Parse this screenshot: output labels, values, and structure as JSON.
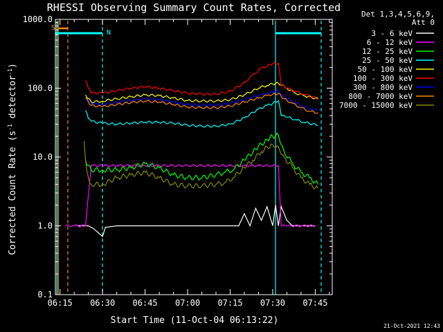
{
  "chart_data": {
    "type": "line",
    "title": "RHESSI Observing Summary Count Rates, Corrected",
    "xlabel": "Start Time (11-Oct-04 06:13:22)",
    "ylabel": "Corrected Count Rate (s",
    "ylabel_sup": "-1",
    "ylabel_mid": " detector",
    "ylabel_end": ")",
    "y_scale": "log",
    "ylim": [
      0.1,
      1000
    ],
    "xlim": [
      "06:13:22",
      "07:51:00"
    ],
    "x_tick_labels": [
      "06:15",
      "06:30",
      "06:45",
      "07:00",
      "07:15",
      "07:30",
      "07:45"
    ],
    "x_tick_minutes": [
      375,
      390,
      405,
      420,
      435,
      450,
      465
    ],
    "y_tick_labels": [
      "0.1",
      "1.0",
      "10.0",
      "100.0",
      "1000.0"
    ],
    "y_tick_values": [
      0.1,
      1,
      10,
      100,
      1000
    ],
    "legend_header_1": "Det 1,3,4,5,6,9,",
    "legend_header_2": "Att 0",
    "legend_position": "top-right",
    "timestamp": "21-Oct-2021 12:43",
    "markers": {
      "saa_label": "S",
      "night_label": "N"
    },
    "series": [
      {
        "name": "3 - 6 keV",
        "color": "#ffffff",
        "points": [
          [
            381,
            1.0
          ],
          [
            383,
            1.0
          ],
          [
            385,
            1.0
          ],
          [
            387,
            0.9
          ],
          [
            390,
            0.7
          ],
          [
            391,
            0.95
          ],
          [
            395,
            1.0
          ],
          [
            400,
            1.0
          ],
          [
            405,
            1.0
          ],
          [
            410,
            1.0
          ],
          [
            415,
            1.0
          ],
          [
            420,
            1.0
          ],
          [
            423,
            1.0
          ],
          [
            425,
            1.0
          ],
          [
            430,
            1.0
          ],
          [
            435,
            1.0
          ],
          [
            438,
            1.0
          ],
          [
            440,
            1.5
          ],
          [
            442,
            1.0
          ],
          [
            444,
            1.8
          ],
          [
            446,
            1.2
          ],
          [
            448,
            1.9
          ],
          [
            450,
            1.0
          ],
          [
            451,
            2.0
          ],
          [
            452,
            1.0
          ],
          [
            453,
            1.9
          ],
          [
            455,
            1.2
          ],
          [
            457,
            1.0
          ],
          [
            460,
            1.0
          ],
          [
            465,
            1.0
          ]
        ]
      },
      {
        "name": "6 - 12 keV",
        "color": "#ff00ff",
        "points": [
          [
            377,
            1.0
          ],
          [
            380,
            1.0
          ],
          [
            384,
            1.0
          ],
          [
            386,
            7.5
          ],
          [
            390,
            7.5
          ],
          [
            395,
            7.5
          ],
          [
            400,
            7.5
          ],
          [
            405,
            7.5
          ],
          [
            410,
            7.5
          ],
          [
            415,
            7.5
          ],
          [
            420,
            7.5
          ],
          [
            425,
            7.5
          ],
          [
            430,
            7.5
          ],
          [
            435,
            7.5
          ],
          [
            440,
            7.5
          ],
          [
            445,
            7.5
          ],
          [
            450,
            7.5
          ],
          [
            452,
            7.5
          ],
          [
            453,
            1.0
          ],
          [
            455,
            1.0
          ],
          [
            460,
            1.0
          ],
          [
            465,
            1.0
          ]
        ]
      },
      {
        "name": "12 - 25 keV",
        "color": "#00ff00",
        "points": [
          [
            384,
            9
          ],
          [
            386,
            6.5
          ],
          [
            390,
            6.5
          ],
          [
            395,
            6.5
          ],
          [
            400,
            7
          ],
          [
            405,
            8
          ],
          [
            410,
            7
          ],
          [
            415,
            5.5
          ],
          [
            420,
            5
          ],
          [
            425,
            5
          ],
          [
            430,
            5.5
          ],
          [
            433,
            6
          ],
          [
            436,
            6.5
          ],
          [
            440,
            9
          ],
          [
            444,
            13
          ],
          [
            448,
            18
          ],
          [
            450,
            20
          ],
          [
            452,
            21
          ],
          [
            454,
            12
          ],
          [
            457,
            8
          ],
          [
            460,
            6
          ],
          [
            463,
            5
          ],
          [
            466,
            4
          ]
        ]
      },
      {
        "name": "25 - 50 keV",
        "color": "#00ffff",
        "points": [
          [
            384,
            48
          ],
          [
            385,
            36
          ],
          [
            386,
            33
          ],
          [
            390,
            31
          ],
          [
            395,
            30
          ],
          [
            400,
            31
          ],
          [
            405,
            32
          ],
          [
            410,
            32
          ],
          [
            415,
            31
          ],
          [
            420,
            29
          ],
          [
            425,
            28
          ],
          [
            430,
            28
          ],
          [
            435,
            30
          ],
          [
            440,
            37
          ],
          [
            445,
            50
          ],
          [
            448,
            56
          ],
          [
            450,
            60
          ],
          [
            452,
            66
          ],
          [
            453,
            40
          ],
          [
            455,
            38
          ],
          [
            458,
            35
          ],
          [
            461,
            32
          ],
          [
            466,
            29
          ]
        ]
      },
      {
        "name": "50 - 100 keV",
        "color": "#ffff00",
        "points": [
          [
            384,
            80
          ],
          [
            386,
            63
          ],
          [
            390,
            65
          ],
          [
            395,
            70
          ],
          [
            400,
            75
          ],
          [
            405,
            80
          ],
          [
            410,
            78
          ],
          [
            415,
            72
          ],
          [
            420,
            66
          ],
          [
            425,
            65
          ],
          [
            430,
            65
          ],
          [
            435,
            68
          ],
          [
            440,
            80
          ],
          [
            445,
            100
          ],
          [
            448,
            110
          ],
          [
            450,
            115
          ],
          [
            452,
            118
          ],
          [
            455,
            100
          ],
          [
            458,
            85
          ],
          [
            461,
            78
          ],
          [
            466,
            70
          ]
        ]
      },
      {
        "name": "100 - 300 keV",
        "color": "#ff0000",
        "points": [
          [
            384,
            130
          ],
          [
            385,
            100
          ],
          [
            386,
            85
          ],
          [
            390,
            85
          ],
          [
            395,
            92
          ],
          [
            400,
            100
          ],
          [
            405,
            105
          ],
          [
            410,
            100
          ],
          [
            415,
            92
          ],
          [
            420,
            85
          ],
          [
            425,
            82
          ],
          [
            430,
            82
          ],
          [
            435,
            90
          ],
          [
            440,
            120
          ],
          [
            443,
            155
          ],
          [
            446,
            195
          ],
          [
            450,
            225
          ],
          [
            452,
            230
          ],
          [
            453,
            110
          ],
          [
            455,
            100
          ],
          [
            458,
            90
          ],
          [
            461,
            82
          ],
          [
            466,
            70
          ]
        ]
      },
      {
        "name": "300 - 800 keV",
        "color": "#0000ff",
        "points": [
          [
            384,
            70
          ],
          [
            386,
            60
          ],
          [
            390,
            58
          ],
          [
            395,
            62
          ],
          [
            400,
            66
          ],
          [
            405,
            70
          ],
          [
            410,
            68
          ],
          [
            415,
            63
          ],
          [
            420,
            58
          ],
          [
            425,
            57
          ],
          [
            430,
            57
          ],
          [
            435,
            60
          ],
          [
            440,
            68
          ],
          [
            445,
            78
          ],
          [
            448,
            84
          ],
          [
            450,
            88
          ],
          [
            452,
            90
          ],
          [
            454,
            75
          ],
          [
            457,
            65
          ],
          [
            460,
            56
          ],
          [
            463,
            50
          ],
          [
            466,
            48
          ]
        ]
      },
      {
        "name": "800 - 7000 keV",
        "color": "#ff8800",
        "points": [
          [
            384,
            72
          ],
          [
            386,
            56
          ],
          [
            390,
            54
          ],
          [
            395,
            58
          ],
          [
            400,
            62
          ],
          [
            405,
            65
          ],
          [
            410,
            63
          ],
          [
            415,
            58
          ],
          [
            420,
            53
          ],
          [
            425,
            52
          ],
          [
            430,
            52
          ],
          [
            435,
            55
          ],
          [
            440,
            63
          ],
          [
            445,
            72
          ],
          [
            448,
            78
          ],
          [
            450,
            82
          ],
          [
            452,
            84
          ],
          [
            454,
            70
          ],
          [
            457,
            60
          ],
          [
            460,
            52
          ],
          [
            463,
            46
          ],
          [
            466,
            44
          ]
        ]
      },
      {
        "name": "7000 - 15000 keV",
        "color": "#888800",
        "points": [
          [
            383.5,
            17
          ],
          [
            384,
            9
          ],
          [
            385,
            5
          ],
          [
            386,
            4
          ],
          [
            390,
            4
          ],
          [
            395,
            5
          ],
          [
            400,
            5.5
          ],
          [
            405,
            6
          ],
          [
            410,
            5
          ],
          [
            415,
            4
          ],
          [
            420,
            3.8
          ],
          [
            425,
            3.8
          ],
          [
            430,
            4
          ],
          [
            433,
            4.2
          ],
          [
            436,
            5
          ],
          [
            440,
            7
          ],
          [
            443,
            9
          ],
          [
            446,
            12
          ],
          [
            448,
            14
          ],
          [
            450,
            15
          ],
          [
            452,
            14
          ],
          [
            454,
            10
          ],
          [
            457,
            7
          ],
          [
            460,
            5
          ],
          [
            463,
            4
          ],
          [
            466,
            3.5
          ]
        ]
      }
    ]
  }
}
